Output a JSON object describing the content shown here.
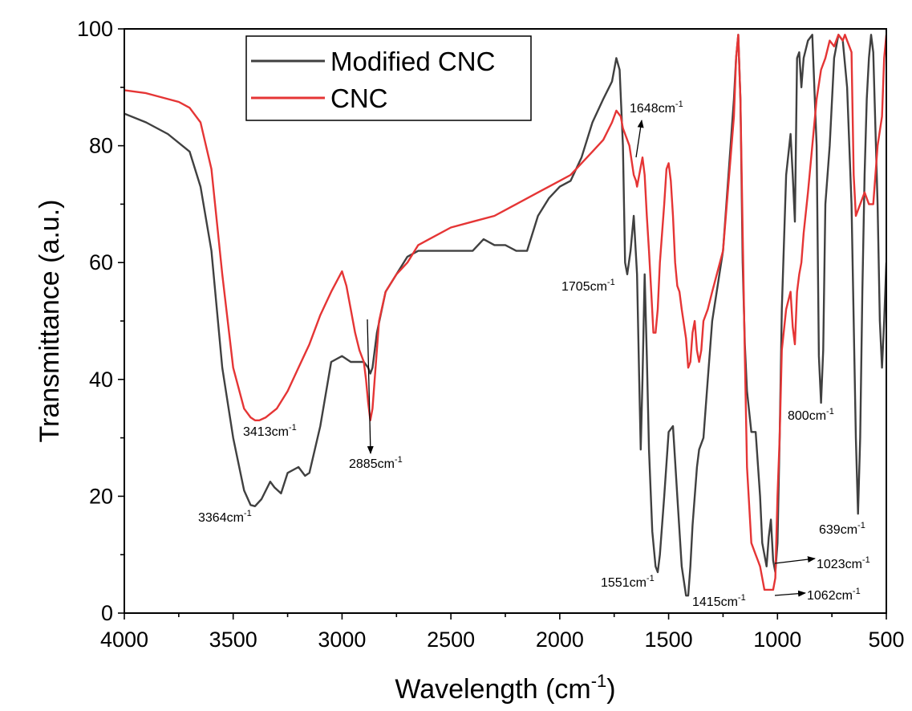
{
  "chart_data": {
    "type": "line",
    "xlabel": "Wavelength (cm",
    "xlabel_sup": "-1",
    "xlabel_end": ")",
    "ylabel": "Transmittance (a.u.)",
    "xlim": [
      4000,
      500
    ],
    "ylim": [
      0,
      100
    ],
    "x_ticks": [
      4000,
      3500,
      3000,
      2500,
      2000,
      1500,
      1000,
      500
    ],
    "y_ticks": [
      0,
      20,
      40,
      60,
      80,
      100
    ],
    "legend_position": "top-left",
    "series": [
      {
        "name": "Modified CNC",
        "color": "#404040",
        "x": [
          4000,
          3900,
          3800,
          3700,
          3650,
          3600,
          3550,
          3500,
          3450,
          3420,
          3400,
          3370,
          3330,
          3310,
          3280,
          3250,
          3200,
          3170,
          3150,
          3100,
          3050,
          3000,
          2960,
          2930,
          2900,
          2880,
          2870,
          2860,
          2840,
          2800,
          2750,
          2700,
          2650,
          2600,
          2500,
          2400,
          2350,
          2300,
          2250,
          2200,
          2150,
          2100,
          2050,
          2000,
          1950,
          1900,
          1850,
          1800,
          1760,
          1740,
          1725,
          1710,
          1700,
          1690,
          1675,
          1660,
          1645,
          1635,
          1628,
          1620,
          1610,
          1600,
          1590,
          1575,
          1560,
          1550,
          1540,
          1520,
          1500,
          1480,
          1460,
          1440,
          1420,
          1410,
          1400,
          1390,
          1370,
          1360,
          1340,
          1320,
          1300,
          1250,
          1200,
          1190,
          1180,
          1170,
          1160,
          1150,
          1140,
          1120,
          1100,
          1080,
          1070,
          1060,
          1050,
          1040,
          1030,
          1020,
          1010,
          1000,
          990,
          980,
          960,
          940,
          930,
          920,
          910,
          900,
          890,
          880,
          860,
          840,
          820,
          810,
          800,
          790,
          780,
          760,
          740,
          720,
          700,
          680,
          660,
          650,
          640,
          630,
          620,
          610,
          600,
          590,
          580,
          570,
          560,
          540,
          530,
          520,
          510,
          500
        ],
        "y": [
          85.5,
          84,
          82,
          79,
          73,
          62,
          42,
          30,
          21,
          18.5,
          18.3,
          19.5,
          22.5,
          21.5,
          20.5,
          24,
          25,
          23.5,
          24,
          32,
          43,
          44,
          43,
          43,
          43,
          42,
          41,
          42,
          48,
          55,
          58,
          61,
          62,
          62,
          62,
          62,
          64,
          63,
          63,
          62,
          62,
          68,
          71,
          73,
          74,
          78,
          84,
          88,
          91,
          95,
          93,
          80,
          60,
          58,
          62,
          68,
          58,
          40,
          28,
          40,
          58,
          44,
          28,
          14,
          8,
          7,
          10,
          20,
          31,
          32,
          20,
          8,
          3,
          3,
          8,
          15,
          25,
          28,
          30,
          40,
          50,
          62,
          88,
          95,
          99,
          88,
          60,
          46,
          38,
          31,
          31,
          20,
          12,
          10,
          8,
          13,
          16,
          9,
          7,
          12,
          30,
          52,
          75,
          82,
          75,
          67,
          95,
          96,
          90,
          95,
          98,
          99,
          80,
          44,
          36,
          45,
          70,
          80,
          95,
          99,
          98,
          90,
          70,
          50,
          30,
          17,
          30,
          55,
          75,
          88,
          95,
          99,
          96,
          70,
          50,
          42,
          50,
          60
        ]
      },
      {
        "name": "CNC",
        "color": "#e53535",
        "x": [
          4000,
          3900,
          3800,
          3750,
          3700,
          3650,
          3600,
          3550,
          3500,
          3450,
          3420,
          3400,
          3380,
          3350,
          3300,
          3250,
          3200,
          3150,
          3100,
          3050,
          3000,
          2980,
          2960,
          2940,
          2920,
          2900,
          2890,
          2880,
          2870,
          2860,
          2850,
          2830,
          2800,
          2750,
          2700,
          2650,
          2600,
          2500,
          2400,
          2300,
          2200,
          2100,
          2000,
          1950,
          1900,
          1850,
          1800,
          1760,
          1740,
          1720,
          1710,
          1700,
          1690,
          1680,
          1660,
          1650,
          1645,
          1640,
          1630,
          1620,
          1610,
          1600,
          1590,
          1580,
          1570,
          1560,
          1550,
          1540,
          1520,
          1510,
          1500,
          1490,
          1480,
          1470,
          1460,
          1450,
          1440,
          1420,
          1410,
          1400,
          1390,
          1380,
          1370,
          1360,
          1350,
          1340,
          1320,
          1300,
          1250,
          1200,
          1190,
          1180,
          1170,
          1160,
          1150,
          1140,
          1120,
          1100,
          1090,
          1080,
          1070,
          1060,
          1050,
          1040,
          1030,
          1020,
          1010,
          1000,
          990,
          980,
          960,
          940,
          930,
          920,
          910,
          900,
          890,
          880,
          860,
          840,
          820,
          800,
          780,
          760,
          740,
          720,
          700,
          690,
          680,
          670,
          660,
          650,
          640,
          620,
          600,
          580,
          560,
          540,
          520,
          510,
          500
        ],
        "y": [
          89.5,
          89,
          88,
          87.5,
          86.5,
          84,
          76,
          58,
          42,
          35,
          33.5,
          33,
          33,
          33.5,
          35,
          38,
          42,
          46,
          51,
          55,
          58.5,
          56,
          52,
          48,
          45,
          43,
          40,
          36,
          33,
          35,
          40,
          50,
          55,
          58,
          60,
          63,
          64,
          66,
          67,
          68,
          70,
          72,
          74,
          75,
          77,
          79,
          81,
          84,
          86,
          85,
          83,
          82,
          81,
          80,
          75,
          74,
          73,
          74,
          76,
          78,
          75,
          68,
          62,
          55,
          48,
          48,
          52,
          60,
          70,
          76,
          77,
          74,
          68,
          60,
          56,
          55,
          52,
          47,
          42,
          43,
          48,
          50,
          45,
          43,
          45,
          50,
          52,
          55,
          62,
          85,
          95,
          99,
          88,
          65,
          44,
          25,
          12,
          10,
          9,
          8,
          6,
          4,
          4,
          4,
          4,
          4,
          6,
          20,
          30,
          45,
          52,
          55,
          49,
          46,
          55,
          58,
          60,
          65,
          72,
          80,
          88,
          93,
          95,
          98,
          97,
          99,
          98,
          99,
          98,
          97,
          96,
          75,
          68,
          70,
          72,
          70,
          70,
          80,
          85,
          95,
          99
        ]
      }
    ],
    "annotations": [
      {
        "text": "3364cm",
        "sup": "-1"
      },
      {
        "text": "3413cm",
        "sup": "-1"
      },
      {
        "text": "2885cm",
        "sup": "-1"
      },
      {
        "text": "1705cm",
        "sup": "-1"
      },
      {
        "text": "1648cm",
        "sup": "-1"
      },
      {
        "text": "1551cm",
        "sup": "-1"
      },
      {
        "text": "1415cm",
        "sup": "-1"
      },
      {
        "text": "1062cm",
        "sup": "-1"
      },
      {
        "text": "1023cm",
        "sup": "-1"
      },
      {
        "text": "800cm",
        "sup": "-1"
      },
      {
        "text": "639cm",
        "sup": "-1"
      }
    ]
  }
}
